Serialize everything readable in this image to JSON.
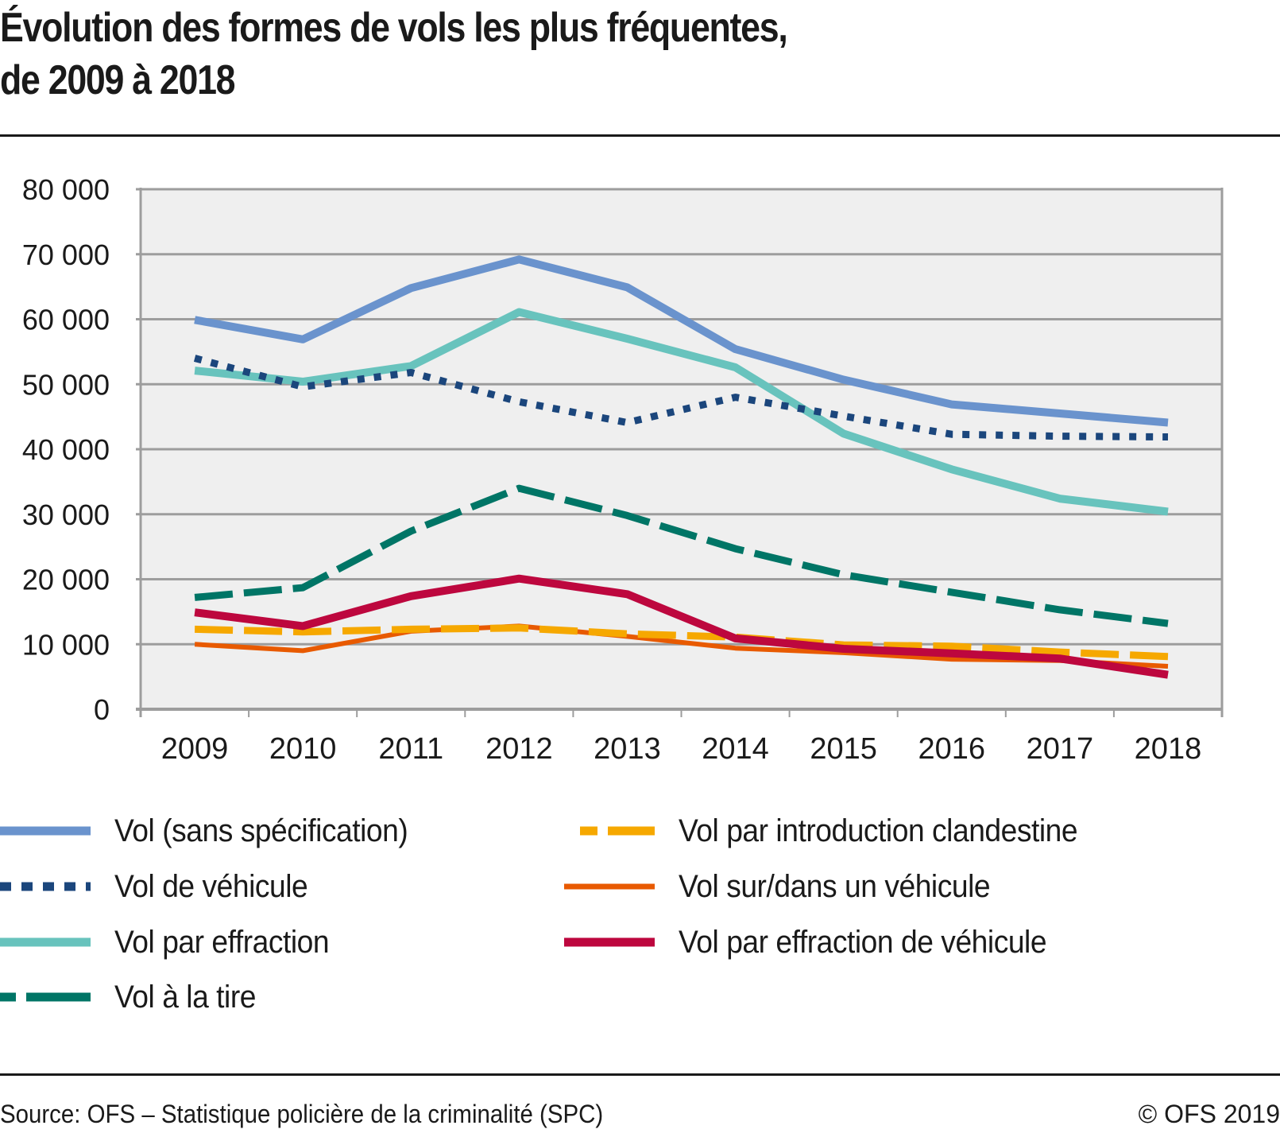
{
  "title": {
    "line1": "Évolution des formes de vols les plus fréquentes,",
    "line2": "de 2009 à 2018"
  },
  "footer": {
    "source": "Source: OFS – Statistique policière de la criminalité (SPC)",
    "copyright": "© OFS 2019"
  },
  "chart_data": {
    "type": "line",
    "title": "Évolution des formes de vols les plus fréquentes, de 2009 à 2018",
    "xlabel": "",
    "ylabel": "",
    "x": [
      "2009",
      "2010",
      "2011",
      "2012",
      "2013",
      "2014",
      "2015",
      "2016",
      "2017",
      "2018"
    ],
    "ylim": [
      0,
      80000
    ],
    "yticks": [
      0,
      10000,
      20000,
      30000,
      40000,
      50000,
      60000,
      70000,
      80000
    ],
    "ytick_labels": [
      "0",
      "10 000",
      "20 000",
      "30 000",
      "40 000",
      "50 000",
      "60 000",
      "70 000",
      "80 000"
    ],
    "grid": true,
    "legend_position": "bottom",
    "series": [
      {
        "name": "Vol (sans spécification)",
        "color": "#6a93cd",
        "style": "solid",
        "values": [
          59900,
          56900,
          64800,
          69200,
          64900,
          55400,
          50700,
          46900,
          45500,
          44100
        ]
      },
      {
        "name": "Vol de véhicule",
        "color": "#1b467c",
        "style": "dotted",
        "values": [
          54000,
          49600,
          51800,
          47300,
          44100,
          48000,
          45100,
          42300,
          42000,
          41900
        ]
      },
      {
        "name": "Vol par effraction",
        "color": "#68c3bd",
        "style": "solid",
        "values": [
          52100,
          50400,
          52800,
          61100,
          57000,
          52600,
          42400,
          36900,
          32400,
          30400
        ]
      },
      {
        "name": "Vol à la tire",
        "color": "#007566",
        "style": "dashed",
        "values": [
          17200,
          18700,
          27400,
          34000,
          29800,
          24700,
          20700,
          18000,
          15300,
          13200
        ]
      },
      {
        "name": "Vol par introduction clandestine",
        "color": "#f6a800",
        "style": "dashed",
        "values": [
          12300,
          11900,
          12300,
          12500,
          11600,
          11100,
          9900,
          9700,
          8800,
          8100
        ]
      },
      {
        "name": "Vol sur/dans un véhicule",
        "color": "#e85a00",
        "style": "solid-thin",
        "values": [
          10000,
          9000,
          12000,
          12800,
          11200,
          9400,
          8700,
          7700,
          7500,
          6600
        ]
      },
      {
        "name": "Vol par effraction de véhicule",
        "color": "#bd073e",
        "style": "solid",
        "values": [
          14900,
          12800,
          17400,
          20100,
          17700,
          10900,
          9300,
          8600,
          7800,
          5300
        ]
      }
    ]
  }
}
